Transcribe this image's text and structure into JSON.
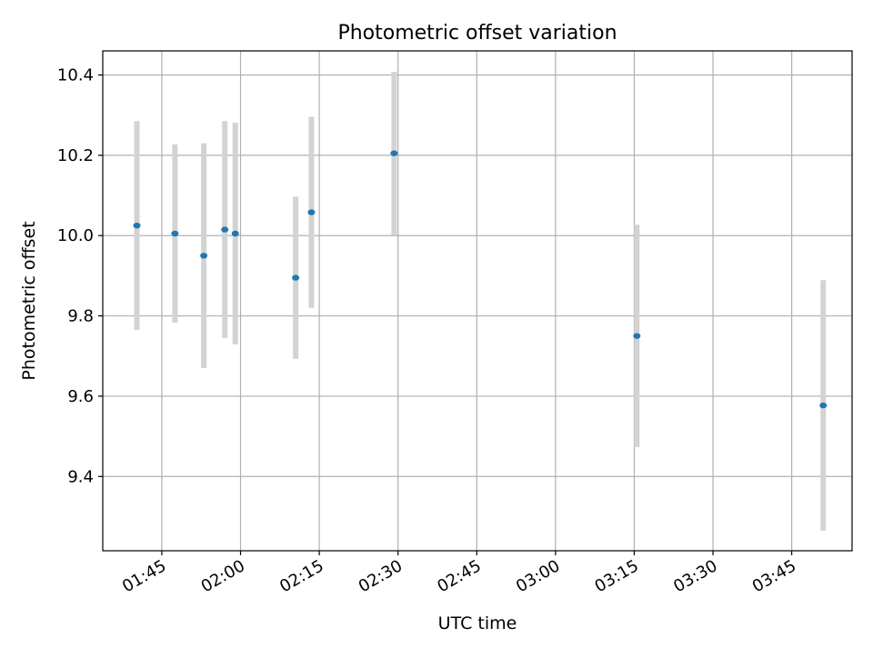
{
  "chart_data": {
    "type": "scatter",
    "title": "Photometric offset variation",
    "xlabel": "UTC time",
    "ylabel": "Photometric offset",
    "grid": true,
    "x_axis_kind": "time",
    "xlim": [
      "01:33:45",
      "03:56:30"
    ],
    "ylim": [
      9.215,
      10.46
    ],
    "x_ticks": [
      "01:45",
      "02:00",
      "02:15",
      "02:30",
      "02:45",
      "03:00",
      "03:15",
      "03:30",
      "03:45"
    ],
    "y_ticks": [
      9.4,
      9.6,
      9.8,
      10.0,
      10.2,
      10.4
    ],
    "y_tick_labels": [
      "9.4",
      "9.6",
      "9.8",
      "10.0",
      "10.2",
      "10.4"
    ],
    "series": [
      {
        "marker_color": "#1f77b4",
        "errorbar_color": "#d3d3d3",
        "points": [
          {
            "x": "01:40:15",
            "y": 10.025,
            "yerr": 0.26
          },
          {
            "x": "01:47:30",
            "y": 10.005,
            "yerr": 0.222
          },
          {
            "x": "01:53:00",
            "y": 9.95,
            "yerr": 0.28
          },
          {
            "x": "01:57:00",
            "y": 10.015,
            "yerr": 0.27
          },
          {
            "x": "01:59:00",
            "y": 10.005,
            "yerr": 0.276
          },
          {
            "x": "02:10:30",
            "y": 9.895,
            "yerr": 0.202
          },
          {
            "x": "02:13:30",
            "y": 10.058,
            "yerr": 0.238
          },
          {
            "x": "02:29:15",
            "y": 10.205,
            "yerr": 0.203
          },
          {
            "x": "03:15:30",
            "y": 9.75,
            "yerr": 0.277
          },
          {
            "x": "03:51:00",
            "y": 9.577,
            "yerr": 0.312
          }
        ]
      }
    ]
  }
}
